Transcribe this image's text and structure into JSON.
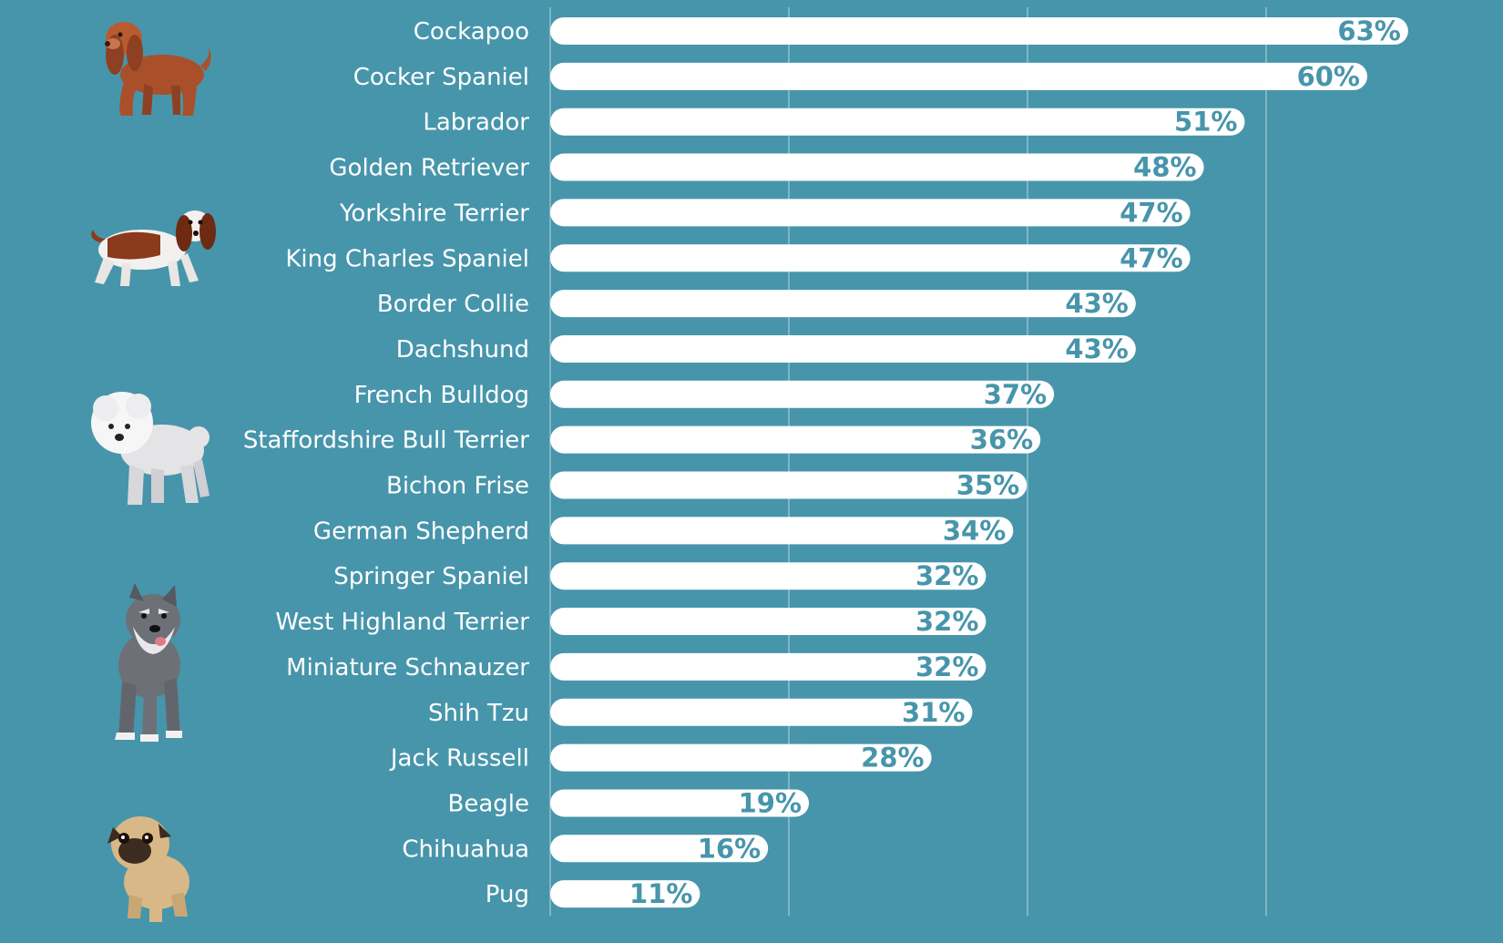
{
  "chart_data": {
    "type": "bar",
    "orientation": "horizontal",
    "categories": [
      "Cockapoo",
      "Cocker Spaniel",
      "Labrador",
      "Golden Retriever",
      "Yorkshire Terrier",
      "King Charles Spaniel",
      "Border Collie",
      "Dachshund",
      "French Bulldog",
      "Staffordshire Bull Terrier",
      "Bichon Frise",
      "German Shepherd",
      "Springer Spaniel",
      "West Highland Terrier",
      "Miniature Schnauzer",
      "Shih Tzu",
      "Jack Russell",
      "Beagle",
      "Chihuahua",
      "Pug"
    ],
    "values": [
      63,
      60,
      51,
      48,
      47,
      47,
      43,
      43,
      37,
      36,
      35,
      34,
      32,
      32,
      32,
      31,
      28,
      19,
      16,
      11
    ],
    "value_labels": [
      "63%",
      "60%",
      "51%",
      "48%",
      "47%",
      "47%",
      "43%",
      "43%",
      "37%",
      "36%",
      "35%",
      "34%",
      "32%",
      "32%",
      "32%",
      "31%",
      "28%",
      "19%",
      "16%",
      "11%"
    ],
    "title": "",
    "xlabel": "",
    "ylabel": "",
    "xlim": [
      0,
      72
    ],
    "grid": true,
    "legend": "none",
    "colors": {
      "background": "#4795ab",
      "bar": "#ffffff",
      "value_text": "#4795ab",
      "label_text": "#ffffff"
    }
  },
  "illustrations": [
    "cocker-spaniel-icon",
    "king-charles-spaniel-icon",
    "bichon-frise-icon",
    "miniature-schnauzer-icon",
    "pug-icon"
  ]
}
